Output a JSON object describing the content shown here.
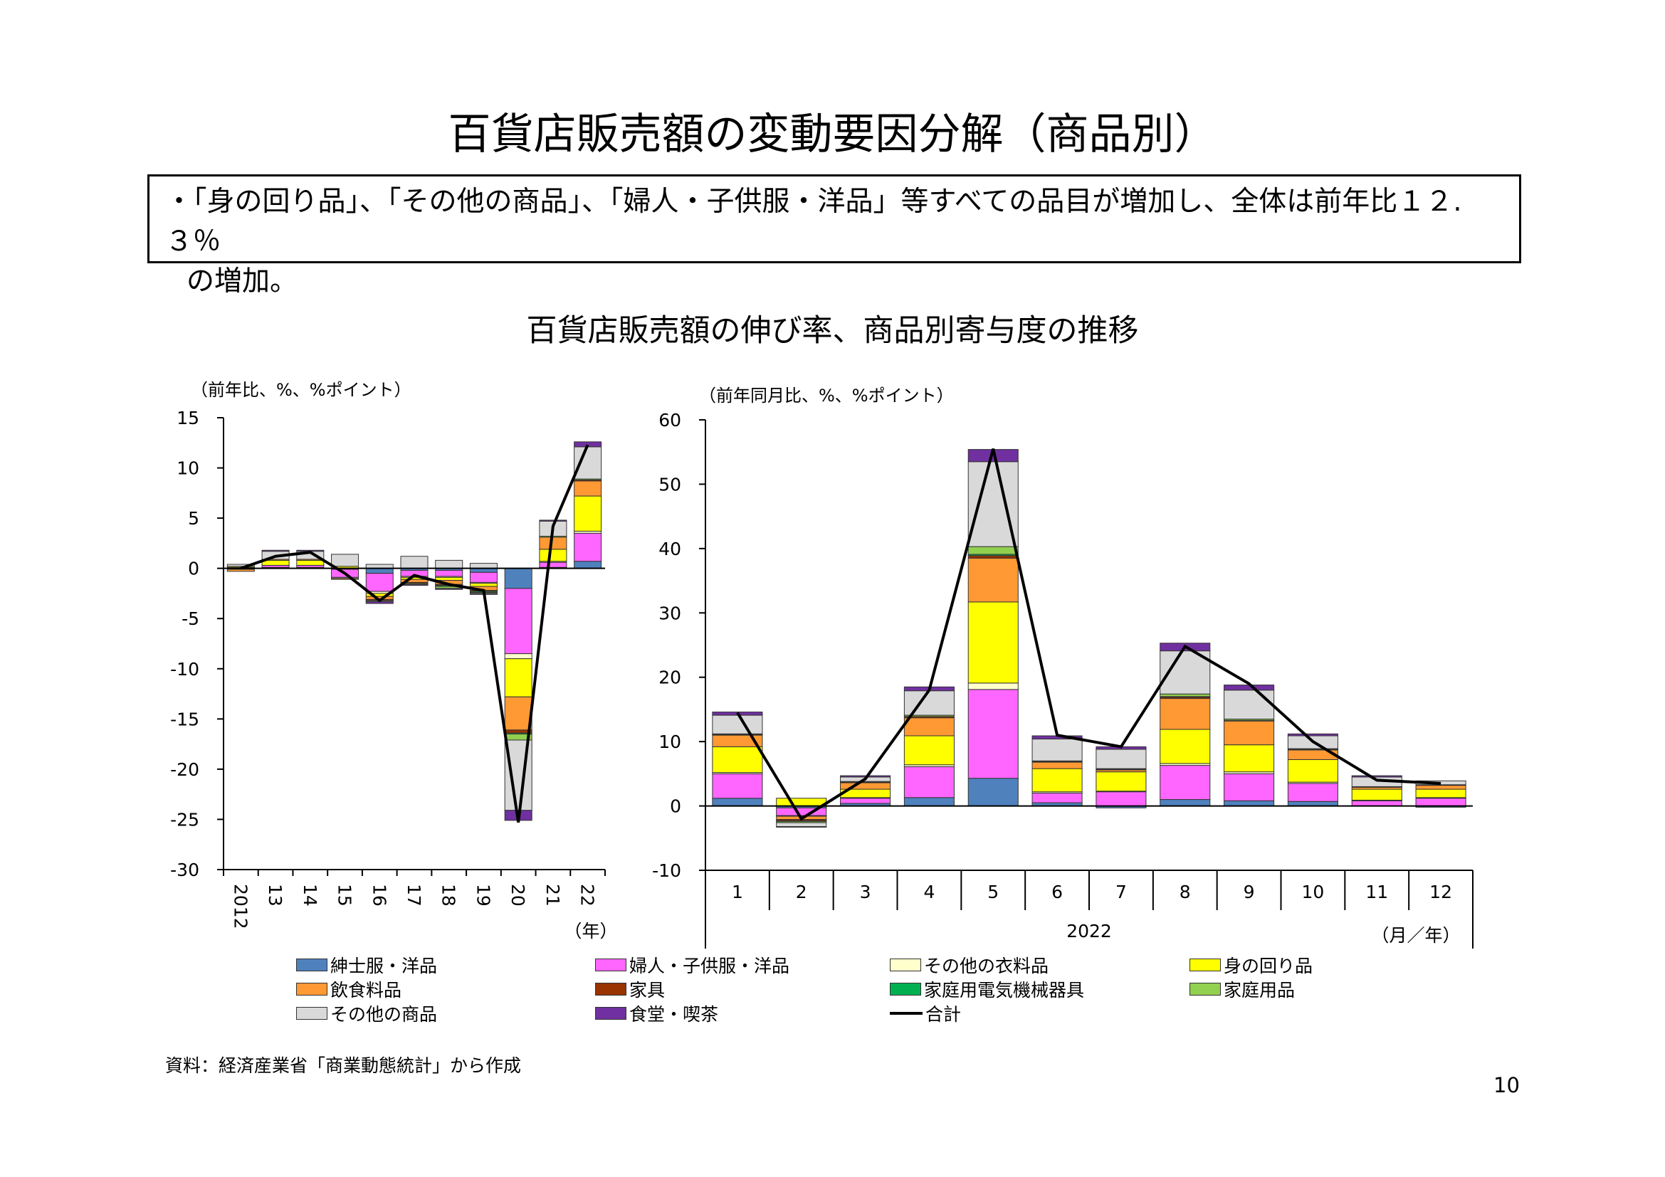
{
  "title": "百貨店販売額の変動要因分解（商品別）",
  "summary": {
    "line1": "・「身の回り品」、「その他の商品」、「婦人・子供服・洋品」等すべての品目が増加し、全体は前年比１２.３％",
    "line2": "の増加。"
  },
  "subtitle": "百貨店販売額の伸び率、商品別寄与度の推移",
  "source": "資料：経済産業省「商業動態統計」から作成",
  "page_number": "10",
  "colors": {
    "men": "#4f81bd",
    "women": "#ff66ff",
    "otherclothing": "#ffffcc",
    "accessories": "#ffff00",
    "food": "#ff9933",
    "furniture": "#993300",
    "appliances": "#00b050",
    "household": "#92d050",
    "other": "#d9d9d9",
    "dining": "#7030a0",
    "total": "#000000"
  },
  "legend": [
    {
      "key": "men",
      "label": "紳士服・洋品"
    },
    {
      "key": "women",
      "label": "婦人・子供服・洋品"
    },
    {
      "key": "otherclothing",
      "label": "その他の衣料品"
    },
    {
      "key": "accessories",
      "label": "身の回り品"
    },
    {
      "key": "food",
      "label": "飲食料品"
    },
    {
      "key": "furniture",
      "label": "家具"
    },
    {
      "key": "appliances",
      "label": "家庭用電気機械器具"
    },
    {
      "key": "household",
      "label": "家庭用品"
    },
    {
      "key": "other",
      "label": "その他の商品"
    },
    {
      "key": "dining",
      "label": "食堂・喫茶"
    },
    {
      "key": "total",
      "label": "合計"
    }
  ],
  "chart_data": [
    {
      "type": "bar",
      "stacked": true,
      "ylabel": "（前年比、%、%ポイント）",
      "xlabel": "（年）",
      "ylim": [
        -30,
        15
      ],
      "yticks": [
        15,
        10,
        5,
        0,
        -5,
        -10,
        -15,
        -20,
        -25,
        -30
      ],
      "categories": [
        "2012",
        "13",
        "14",
        "15",
        "16",
        "17",
        "18",
        "19",
        "20",
        "21",
        "22"
      ],
      "series": [
        {
          "key": "men",
          "values": [
            0.1,
            0.1,
            0.1,
            -0.1,
            -0.5,
            -0.2,
            -0.2,
            -0.4,
            -2.0,
            0.1,
            0.7
          ]
        },
        {
          "key": "women",
          "values": [
            -0.1,
            0.2,
            0.2,
            -0.8,
            -1.8,
            -0.6,
            -0.6,
            -1.0,
            -6.5,
            0.5,
            2.8
          ]
        },
        {
          "key": "otherclothing",
          "values": [
            0.0,
            0.0,
            0.0,
            -0.1,
            -0.2,
            -0.1,
            -0.1,
            -0.1,
            -0.5,
            0.1,
            0.2
          ]
        },
        {
          "key": "accessories",
          "values": [
            0.1,
            0.5,
            0.5,
            0.2,
            -0.3,
            -0.2,
            -0.3,
            -0.3,
            -3.8,
            1.2,
            3.5
          ]
        },
        {
          "key": "food",
          "values": [
            -0.2,
            0.1,
            0.1,
            -0.1,
            -0.3,
            -0.3,
            -0.4,
            -0.4,
            -3.3,
            1.2,
            1.5
          ]
        },
        {
          "key": "furniture",
          "values": [
            0.0,
            0.0,
            0.0,
            0.0,
            -0.1,
            -0.1,
            -0.1,
            -0.1,
            -0.3,
            0.0,
            0.1
          ]
        },
        {
          "key": "appliances",
          "values": [
            0.0,
            0.0,
            0.0,
            0.0,
            0.0,
            0.0,
            -0.1,
            -0.1,
            -0.1,
            0.0,
            0.0
          ]
        },
        {
          "key": "household",
          "values": [
            0.0,
            0.0,
            0.0,
            0.0,
            -0.1,
            -0.1,
            -0.2,
            -0.1,
            -0.6,
            0.1,
            0.1
          ]
        },
        {
          "key": "other",
          "values": [
            0.2,
            0.8,
            0.8,
            1.2,
            0.4,
            1.2,
            0.8,
            0.5,
            -7.0,
            1.5,
            3.2
          ]
        },
        {
          "key": "dining",
          "values": [
            0.0,
            0.1,
            0.1,
            0.0,
            -0.2,
            -0.1,
            -0.1,
            -0.1,
            -1.0,
            0.1,
            0.5
          ]
        }
      ],
      "total": {
        "key": "total",
        "values": [
          0.0,
          1.2,
          1.6,
          -0.5,
          -3.2,
          -0.7,
          -1.6,
          -2.2,
          -25.3,
          4.2,
          12.3
        ]
      }
    },
    {
      "type": "bar",
      "stacked": true,
      "ylabel": "（前年同月比、%、%ポイント）",
      "xlabel": "（月／年）",
      "year_label": "2022",
      "ylim": [
        -10,
        60
      ],
      "yticks": [
        60,
        50,
        40,
        30,
        20,
        10,
        0,
        -10
      ],
      "categories": [
        "1",
        "2",
        "3",
        "4",
        "5",
        "6",
        "7",
        "8",
        "9",
        "10",
        "11",
        "12"
      ],
      "series": [
        {
          "key": "men",
          "values": [
            1.2,
            -0.3,
            0.4,
            1.3,
            4.3,
            0.5,
            -0.3,
            1.0,
            0.8,
            0.7,
            0.0,
            -0.2
          ]
        },
        {
          "key": "women",
          "values": [
            3.8,
            -1.2,
            0.8,
            4.8,
            13.8,
            1.5,
            2.2,
            5.3,
            4.2,
            2.8,
            0.8,
            1.2
          ]
        },
        {
          "key": "otherclothing",
          "values": [
            0.2,
            -0.1,
            0.1,
            0.3,
            1.0,
            0.2,
            0.1,
            0.3,
            0.3,
            0.2,
            0.1,
            0.1
          ]
        },
        {
          "key": "accessories",
          "values": [
            4.0,
            1.2,
            1.3,
            4.5,
            12.6,
            3.6,
            3.0,
            5.3,
            4.2,
            3.5,
            1.7,
            1.3
          ]
        },
        {
          "key": "food",
          "values": [
            1.8,
            -0.5,
            1.0,
            2.8,
            6.8,
            1.0,
            0.3,
            4.8,
            3.7,
            1.5,
            0.3,
            0.6
          ]
        },
        {
          "key": "furniture",
          "values": [
            0.1,
            -0.2,
            0.1,
            0.2,
            0.4,
            0.1,
            0.1,
            0.2,
            0.1,
            0.1,
            0.0,
            0.0
          ]
        },
        {
          "key": "appliances",
          "values": [
            0.0,
            -0.1,
            0.0,
            0.0,
            0.2,
            0.0,
            0.0,
            0.1,
            0.0,
            0.0,
            0.0,
            0.0
          ]
        },
        {
          "key": "household",
          "values": [
            0.1,
            -0.2,
            0.1,
            0.2,
            1.2,
            0.1,
            0.1,
            0.4,
            0.2,
            0.1,
            0.1,
            0.1
          ]
        },
        {
          "key": "other",
          "values": [
            2.9,
            -0.6,
            0.7,
            3.8,
            13.2,
            3.4,
            3.0,
            6.7,
            4.5,
            2.0,
            1.5,
            0.6
          ]
        },
        {
          "key": "dining",
          "values": [
            0.5,
            -0.1,
            0.2,
            0.6,
            1.9,
            0.5,
            0.4,
            1.2,
            0.8,
            0.3,
            0.2,
            0.0
          ]
        }
      ],
      "total": {
        "key": "total",
        "values": [
          14.5,
          -2.0,
          4.2,
          18.0,
          55.5,
          11.0,
          9.2,
          24.8,
          19.0,
          10.0,
          4.0,
          3.5
        ]
      }
    }
  ]
}
